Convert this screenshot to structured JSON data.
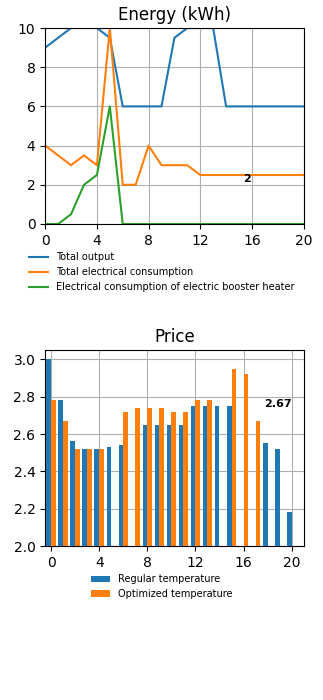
{
  "chart_data": [
    {
      "type": "line",
      "title": "Energy (kWh)",
      "x": [
        0,
        1,
        2,
        3,
        4,
        5,
        6,
        7,
        8,
        9,
        10,
        11,
        12,
        13,
        14,
        15,
        16,
        17,
        18,
        19,
        20
      ],
      "series": [
        {
          "name": "Total output",
          "values": [
            9,
            9.5,
            10,
            10,
            10,
            9.5,
            6,
            6,
            6,
            6,
            9.5,
            10,
            10,
            10,
            6,
            6,
            6,
            6,
            6,
            6,
            6
          ]
        },
        {
          "name": "Total electrical consumption",
          "values": [
            4,
            3.5,
            3,
            3.5,
            3,
            10,
            2,
            2,
            4,
            3,
            3,
            3,
            2.5,
            2.5,
            2.5,
            2.5,
            2.5,
            2.5,
            2.5,
            2.5,
            2.5
          ]
        },
        {
          "name": "Electrical consumption of electric booster heater",
          "values": [
            0,
            0,
            0.5,
            2,
            2.5,
            6,
            0,
            0,
            0,
            0,
            0,
            0,
            0,
            0,
            0,
            0,
            0,
            0,
            0,
            0,
            0
          ]
        }
      ],
      "xlim": [
        0,
        20
      ],
      "ylim": [
        0,
        10
      ],
      "xticks": [
        0,
        4,
        8,
        12,
        16,
        20
      ],
      "yticks": [
        0,
        2,
        4,
        6,
        8,
        10
      ],
      "grid": true,
      "legend": "upper center",
      "annotations": [
        {
          "text": "2",
          "x": 15.3,
          "y": 2.3
        }
      ]
    },
    {
      "type": "bar",
      "title": "Price",
      "x": [
        0,
        1,
        2,
        3,
        4,
        5,
        6,
        7,
        8,
        9,
        10,
        11,
        12,
        13,
        14,
        15,
        16,
        17,
        18,
        19,
        20
      ],
      "series": [
        {
          "name": "Regular temperature",
          "values": [
            3.0,
            2.78,
            2.56,
            2.52,
            2.52,
            2.53,
            2.54,
            null,
            2.65,
            2.65,
            2.65,
            2.65,
            2.75,
            2.75,
            2.75,
            2.75,
            null,
            null,
            2.55,
            2.52,
            2.18
          ]
        },
        {
          "name": "Optimized temperature",
          "values": [
            2.78,
            2.67,
            2.52,
            2.52,
            2.52,
            null,
            2.72,
            2.74,
            2.74,
            2.74,
            2.72,
            2.72,
            2.78,
            2.78,
            null,
            2.95,
            2.92,
            2.67,
            null,
            null,
            null
          ]
        }
      ],
      "xlim": [
        -0.5,
        21
      ],
      "ylim": [
        2.0,
        3.05
      ],
      "xticks": [
        0,
        4,
        8,
        12,
        16,
        20
      ],
      "yticks": [
        2.0,
        2.2,
        2.4,
        2.6,
        2.8,
        3.0
      ],
      "grid": true,
      "legend": "upper center",
      "annotations": [
        {
          "text": "2.67",
          "x": 17.7,
          "y": 2.76
        }
      ]
    }
  ]
}
